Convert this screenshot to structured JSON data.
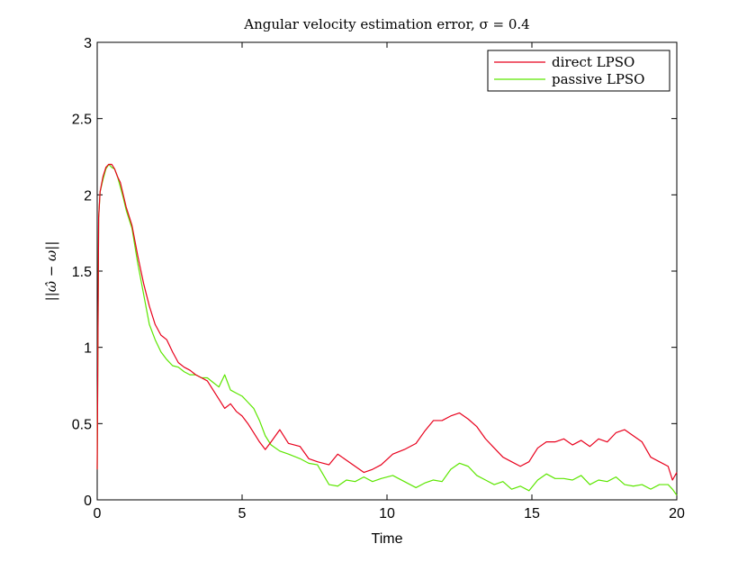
{
  "chart_data": {
    "type": "line",
    "title": "Angular velocity estimation error, σ = 0.4",
    "xlabel": "Time",
    "ylabel": "||ω̂ − ω||",
    "xlim": [
      0,
      20
    ],
    "ylim": [
      0,
      3
    ],
    "xticks": [
      0,
      5,
      10,
      15,
      20
    ],
    "yticks": [
      0,
      0.5,
      1,
      1.5,
      2,
      2.5,
      3
    ],
    "xtick_labels": [
      "0",
      "5",
      "10",
      "15",
      "20"
    ],
    "ytick_labels": [
      "0",
      "0.5",
      "1",
      "1.5",
      "2",
      "2.5",
      "3"
    ],
    "grid": false,
    "legend_position": "top-right",
    "series": [
      {
        "name": "direct LPSO",
        "color": "#e8001c",
        "x": [
          0,
          0.05,
          0.1,
          0.2,
          0.3,
          0.4,
          0.5,
          0.6,
          0.7,
          0.8,
          0.9,
          1.0,
          1.2,
          1.4,
          1.6,
          1.8,
          2.0,
          2.2,
          2.4,
          2.6,
          2.8,
          3.0,
          3.2,
          3.4,
          3.6,
          3.8,
          4.0,
          4.2,
          4.4,
          4.6,
          4.8,
          5.0,
          5.2,
          5.4,
          5.6,
          5.8,
          6.0,
          6.3,
          6.6,
          7.0,
          7.3,
          7.6,
          8.0,
          8.3,
          8.6,
          8.9,
          9.2,
          9.5,
          9.8,
          10.2,
          10.6,
          11.0,
          11.3,
          11.6,
          11.9,
          12.2,
          12.5,
          12.8,
          13.1,
          13.4,
          13.7,
          14.0,
          14.3,
          14.6,
          14.9,
          15.2,
          15.5,
          15.8,
          16.1,
          16.4,
          16.7,
          17.0,
          17.3,
          17.6,
          17.9,
          18.2,
          18.5,
          18.8,
          19.1,
          19.4,
          19.7,
          19.85,
          20.0
        ],
        "values": [
          0.2,
          1.85,
          2.02,
          2.12,
          2.18,
          2.2,
          2.2,
          2.17,
          2.12,
          2.08,
          2.0,
          1.92,
          1.8,
          1.6,
          1.42,
          1.27,
          1.15,
          1.08,
          1.05,
          0.97,
          0.9,
          0.87,
          0.85,
          0.82,
          0.8,
          0.78,
          0.72,
          0.66,
          0.6,
          0.63,
          0.58,
          0.55,
          0.5,
          0.44,
          0.38,
          0.33,
          0.38,
          0.46,
          0.37,
          0.35,
          0.27,
          0.25,
          0.23,
          0.3,
          0.26,
          0.22,
          0.18,
          0.2,
          0.23,
          0.3,
          0.33,
          0.37,
          0.45,
          0.52,
          0.52,
          0.55,
          0.57,
          0.53,
          0.48,
          0.4,
          0.34,
          0.28,
          0.25,
          0.22,
          0.25,
          0.34,
          0.38,
          0.38,
          0.4,
          0.36,
          0.39,
          0.35,
          0.4,
          0.38,
          0.44,
          0.46,
          0.42,
          0.38,
          0.28,
          0.25,
          0.22,
          0.13,
          0.18
        ]
      },
      {
        "name": "passive LPSO",
        "color": "#5ce600",
        "x": [
          0,
          0.05,
          0.1,
          0.2,
          0.3,
          0.4,
          0.5,
          0.6,
          0.7,
          0.8,
          0.9,
          1.0,
          1.2,
          1.4,
          1.6,
          1.8,
          2.0,
          2.2,
          2.4,
          2.6,
          2.8,
          3.0,
          3.2,
          3.4,
          3.6,
          3.8,
          4.0,
          4.2,
          4.4,
          4.6,
          4.8,
          5.0,
          5.2,
          5.4,
          5.6,
          5.8,
          6.0,
          6.3,
          6.6,
          7.0,
          7.3,
          7.6,
          8.0,
          8.3,
          8.6,
          8.9,
          9.2,
          9.5,
          9.8,
          10.2,
          10.6,
          11.0,
          11.3,
          11.6,
          11.9,
          12.2,
          12.5,
          12.8,
          13.1,
          13.4,
          13.7,
          14.0,
          14.3,
          14.6,
          14.9,
          15.2,
          15.5,
          15.8,
          16.1,
          16.4,
          16.7,
          17.0,
          17.3,
          17.6,
          17.9,
          18.2,
          18.5,
          18.8,
          19.1,
          19.4,
          19.7,
          19.85,
          20.0
        ],
        "values": [
          0.2,
          1.85,
          2.02,
          2.1,
          2.17,
          2.2,
          2.18,
          2.17,
          2.12,
          2.05,
          1.98,
          1.9,
          1.78,
          1.55,
          1.35,
          1.15,
          1.05,
          0.97,
          0.92,
          0.88,
          0.87,
          0.84,
          0.82,
          0.82,
          0.8,
          0.8,
          0.77,
          0.74,
          0.82,
          0.72,
          0.7,
          0.68,
          0.64,
          0.6,
          0.52,
          0.42,
          0.36,
          0.32,
          0.3,
          0.27,
          0.24,
          0.23,
          0.1,
          0.09,
          0.13,
          0.12,
          0.15,
          0.12,
          0.14,
          0.16,
          0.12,
          0.08,
          0.11,
          0.13,
          0.12,
          0.2,
          0.24,
          0.22,
          0.16,
          0.13,
          0.1,
          0.12,
          0.07,
          0.09,
          0.06,
          0.13,
          0.17,
          0.14,
          0.14,
          0.13,
          0.16,
          0.1,
          0.13,
          0.12,
          0.15,
          0.1,
          0.09,
          0.1,
          0.07,
          0.1,
          0.1,
          0.07,
          0.03
        ]
      }
    ]
  }
}
